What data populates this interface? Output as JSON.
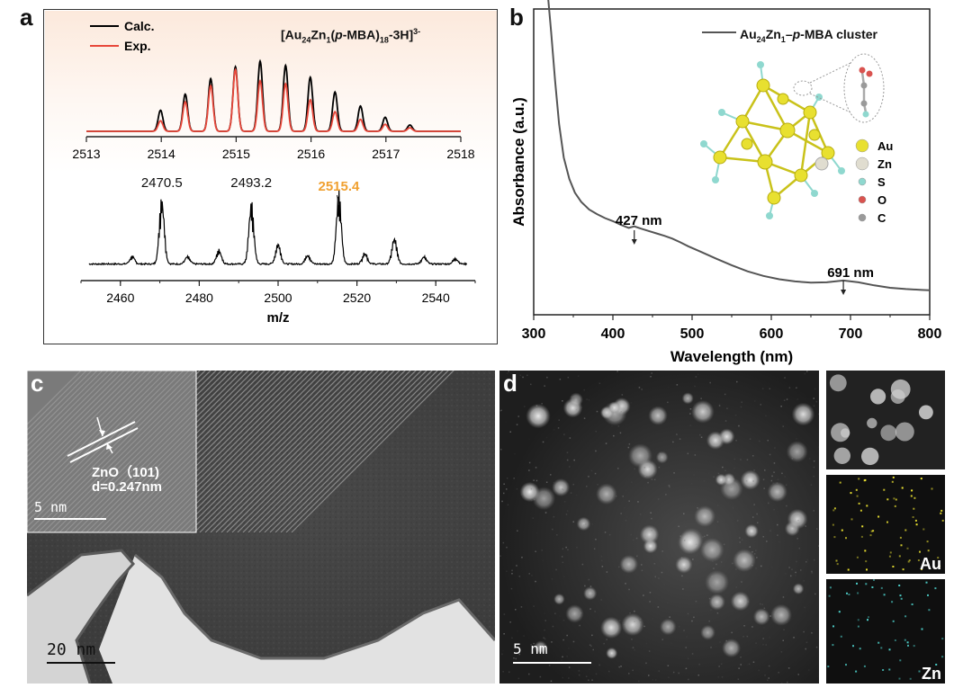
{
  "panels": {
    "a": {
      "label": "a",
      "legend": [
        {
          "name": "Calc.",
          "color": "#000000"
        },
        {
          "name": "Exp.",
          "color": "#e8473a"
        }
      ],
      "formula": {
        "pre": "[Au",
        "s1": "24",
        "mid1": "Zn",
        "s2": "1",
        "mid2": "(",
        "ital": "p",
        "mid3": "-MBA)",
        "s3": "18",
        "mid4": "-3H]",
        "sup": "3-"
      },
      "background": "#fbeee6"
    },
    "b": {
      "label": "b",
      "legend": {
        "pre": "Au",
        "s1": "24",
        "mid": "Zn",
        "s2": "1",
        "dash": "–",
        "ital": "p",
        "post": "-MBA cluster"
      },
      "peak_labels": [
        "427 nm",
        "691 nm"
      ],
      "atom_legend": [
        {
          "name": "Au",
          "color": "#e8e030"
        },
        {
          "name": "Zn",
          "color": "#e0ddd0"
        },
        {
          "name": "S",
          "color": "#8fd8cf"
        },
        {
          "name": "O",
          "color": "#d9534f"
        },
        {
          "name": "C",
          "color": "#9a9a9a"
        }
      ]
    },
    "c": {
      "label": "c",
      "inset_text": [
        "ZnO（101)",
        "d=0.247nm"
      ],
      "inset_scale": "5 nm",
      "scale": "20 nm"
    },
    "d": {
      "label": "d",
      "scale": "5 nm",
      "map_labels": [
        "Au",
        "Zn"
      ],
      "map_colors": {
        "Au": "#f2e832",
        "Zn": "#4fd6d0"
      }
    }
  },
  "chart_data": [
    {
      "type": "line",
      "panel": "a-inset",
      "xlabel": "",
      "ylabel": "",
      "xlim": [
        2513,
        2518
      ],
      "xticks": [
        "2513",
        "2514",
        "2515",
        "2516",
        "2517",
        "2518"
      ],
      "series": [
        {
          "name": "Calc.",
          "color": "#000000",
          "peaks_x": [
            2513.99,
            2514.32,
            2514.66,
            2514.99,
            2515.32,
            2515.66,
            2515.99,
            2516.32,
            2516.66,
            2516.99,
            2517.32
          ],
          "peaks_y": [
            0.3,
            0.53,
            0.75,
            0.92,
            1.0,
            0.94,
            0.77,
            0.56,
            0.36,
            0.2,
            0.09
          ]
        },
        {
          "name": "Exp.",
          "color": "#e8473a",
          "peaks_x": [
            2513.99,
            2514.32,
            2514.66,
            2514.99,
            2515.32,
            2515.66,
            2515.99,
            2516.32,
            2516.66,
            2516.99,
            2517.32
          ],
          "peaks_y": [
            0.15,
            0.42,
            0.65,
            0.88,
            0.72,
            0.68,
            0.45,
            0.28,
            0.17,
            0.1,
            0.05
          ]
        }
      ]
    },
    {
      "type": "line",
      "panel": "a-main",
      "xlabel": "m/z",
      "ylabel": "",
      "xlim": [
        2450,
        2550
      ],
      "xticks": [
        "2460",
        "2480",
        "2500",
        "2520",
        "2540"
      ],
      "annotations": [
        {
          "text": "2470.5",
          "x": 2470.5,
          "color": "#111111"
        },
        {
          "text": "2493.2",
          "x": 2493.2,
          "color": "#111111"
        },
        {
          "text": "2515.4",
          "x": 2515.4,
          "color": "#f0a030"
        }
      ],
      "series": [
        {
          "name": "",
          "color": "#000000",
          "peaks_x": [
            2463,
            2470.5,
            2477,
            2485,
            2493.2,
            2500,
            2507.5,
            2515.4,
            2522,
            2529.5,
            2537,
            2545
          ],
          "peaks_y": [
            0.08,
            0.7,
            0.08,
            0.15,
            0.65,
            0.22,
            0.1,
            0.75,
            0.12,
            0.28,
            0.08,
            0.06
          ]
        }
      ]
    },
    {
      "type": "line",
      "panel": "b",
      "xlabel": "Wavelength (nm)",
      "ylabel": "Absorbance (a.u.)",
      "xlim": [
        300,
        800
      ],
      "xticks": [
        "300",
        "400",
        "500",
        "600",
        "700",
        "800"
      ],
      "series": [
        {
          "name": "Au24Zn1–p-MBA cluster",
          "color": "#555555",
          "x": [
            318,
            322,
            327,
            332,
            338,
            345,
            352,
            360,
            370,
            380,
            390,
            400,
            410,
            420,
            427,
            435,
            445,
            455,
            465,
            475,
            485,
            495,
            510,
            530,
            550,
            570,
            590,
            610,
            630,
            650,
            670,
            691,
            710,
            730,
            750,
            770,
            790,
            800
          ],
          "y": [
            1.0,
            0.88,
            0.72,
            0.58,
            0.47,
            0.4,
            0.355,
            0.325,
            0.3,
            0.285,
            0.272,
            0.262,
            0.25,
            0.24,
            0.245,
            0.238,
            0.23,
            0.222,
            0.214,
            0.205,
            0.193,
            0.18,
            0.163,
            0.14,
            0.118,
            0.098,
            0.083,
            0.072,
            0.065,
            0.061,
            0.062,
            0.068,
            0.062,
            0.052,
            0.044,
            0.04,
            0.037,
            0.036
          ]
        }
      ]
    }
  ]
}
